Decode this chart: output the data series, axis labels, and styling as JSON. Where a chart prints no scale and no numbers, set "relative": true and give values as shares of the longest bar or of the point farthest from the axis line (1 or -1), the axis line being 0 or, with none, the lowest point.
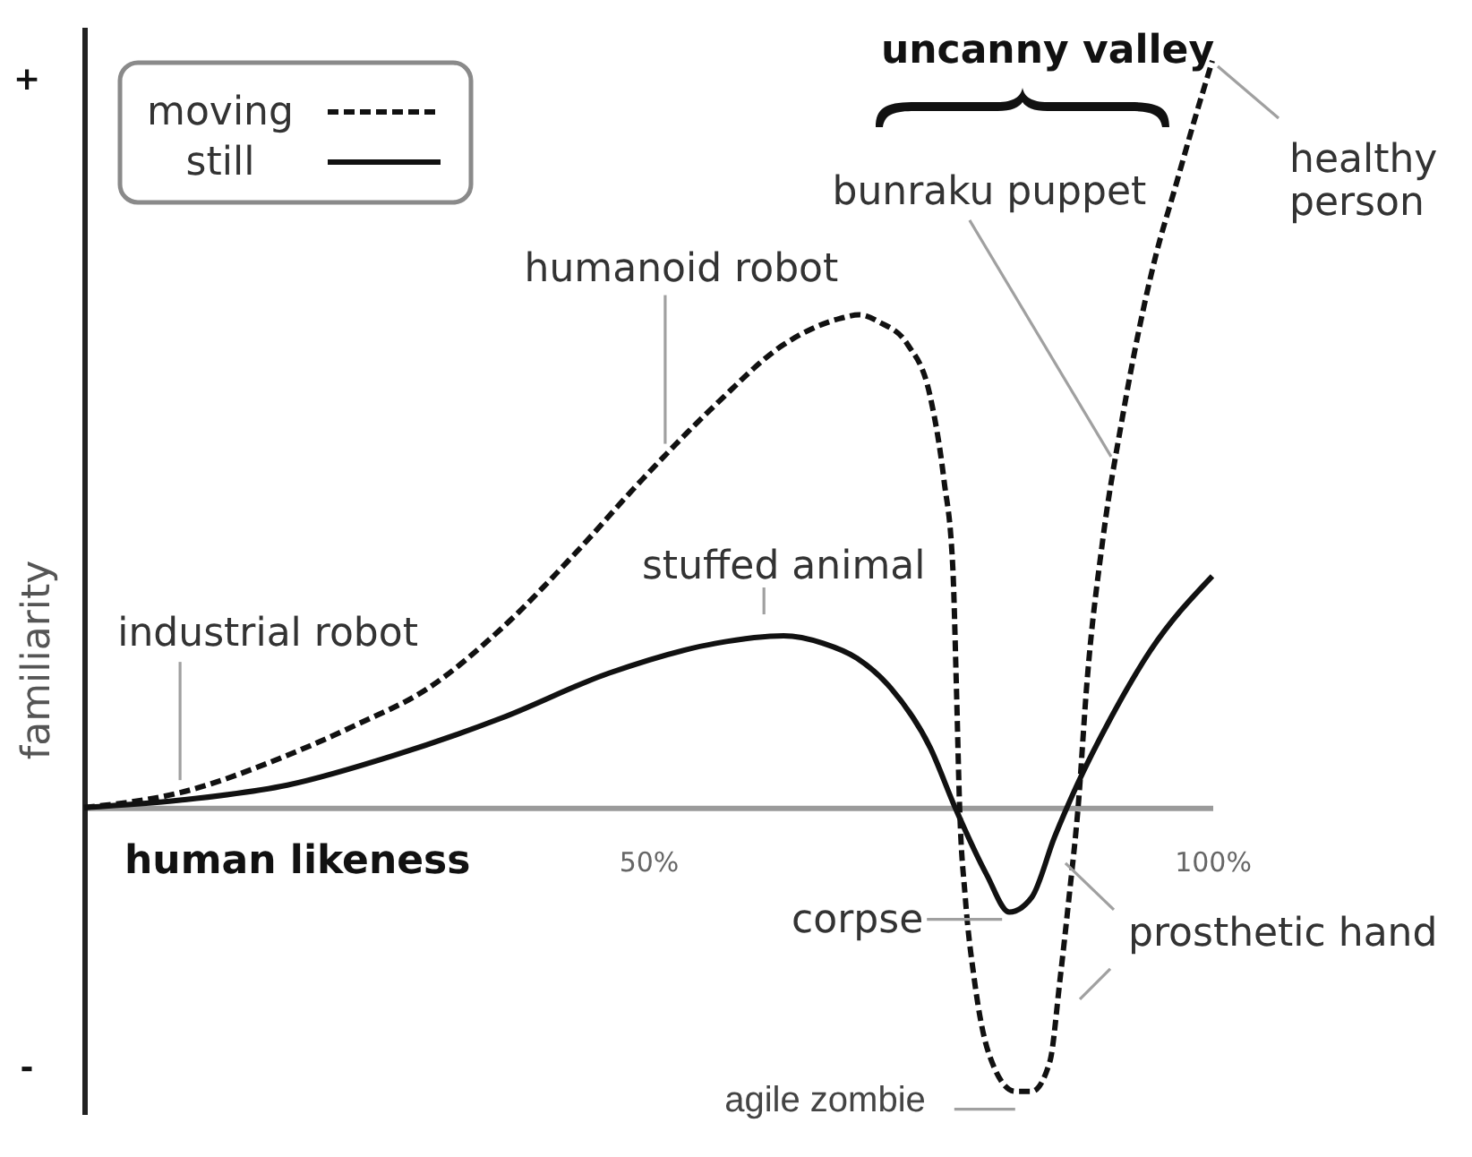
{
  "chart_data": {
    "type": "line",
    "relative": true,
    "xlabel": "human likeness",
    "ylabel": "familiarity",
    "xlim": [
      0,
      100
    ],
    "xticks": [
      {
        "value": 50,
        "label": "50%"
      },
      {
        "value": 100,
        "label": "100%"
      }
    ],
    "legend": "top left",
    "series": [
      {
        "name": "moving",
        "color": "#111111",
        "line_style": "dashed",
        "x": [
          0,
          8.5,
          18,
          24,
          30.5,
          37,
          43.5,
          49.5,
          56,
          62,
          67,
          68.7,
          70.5,
          73,
          75,
          76.2,
          77,
          77.3,
          77.6,
          78.1,
          78.9,
          80.2,
          82.5,
          84,
          85.6,
          86.5,
          87.3,
          88.1,
          88.9,
          90.3,
          92,
          93.5,
          95,
          96.7,
          98.4,
          100
        ],
        "values": [
          0,
          0.02,
          0.07,
          0.11,
          0.16,
          0.24,
          0.34,
          0.44,
          0.54,
          0.62,
          0.655,
          0.66,
          0.65,
          0.62,
          0.55,
          0.44,
          0.32,
          0.17,
          0,
          -0.12,
          -0.23,
          -0.33,
          -0.38,
          -0.38,
          -0.34,
          -0.23,
          -0.12,
          0,
          0.17,
          0.36,
          0.52,
          0.64,
          0.74,
          0.83,
          0.92,
          1
        ]
      },
      {
        "name": "still",
        "color": "#111111",
        "line_style": "solid",
        "x": [
          0,
          8.5,
          18,
          27.5,
          37,
          46.5,
          56,
          62,
          65.5,
          68.5,
          71.5,
          75,
          77.2,
          80,
          82,
          84,
          86,
          88,
          91,
          94.5,
          100
        ],
        "values": [
          0,
          0.01,
          0.03,
          0.07,
          0.12,
          0.18,
          0.22,
          0.23,
          0.22,
          0.2,
          0.16,
          0.08,
          0,
          -0.09,
          -0.14,
          -0.12,
          -0.04,
          0.03,
          0.12,
          0.21,
          0.31
        ]
      }
    ],
    "annotations": [
      "uncanny valley",
      "+",
      "-",
      {
        "text": "industrial robot",
        "x": 8.5,
        "y": 0.02
      },
      {
        "text": "humanoid robot",
        "x": 51.5,
        "y": 0.48
      },
      {
        "text": "stuffed animal",
        "x": 62,
        "y": 0.23
      },
      {
        "text": "bunraku puppet",
        "x": 91.5,
        "y": 0.47
      },
      {
        "text": "healthy person",
        "x": 100,
        "y": 1
      },
      {
        "text": "corpse",
        "x": 82,
        "y": -0.14
      },
      {
        "text": "prosthetic hand",
        "x": 87.3,
        "y": -0.12
      },
      {
        "text": "agile zombie",
        "x": 83,
        "y": -0.38
      }
    ]
  }
}
